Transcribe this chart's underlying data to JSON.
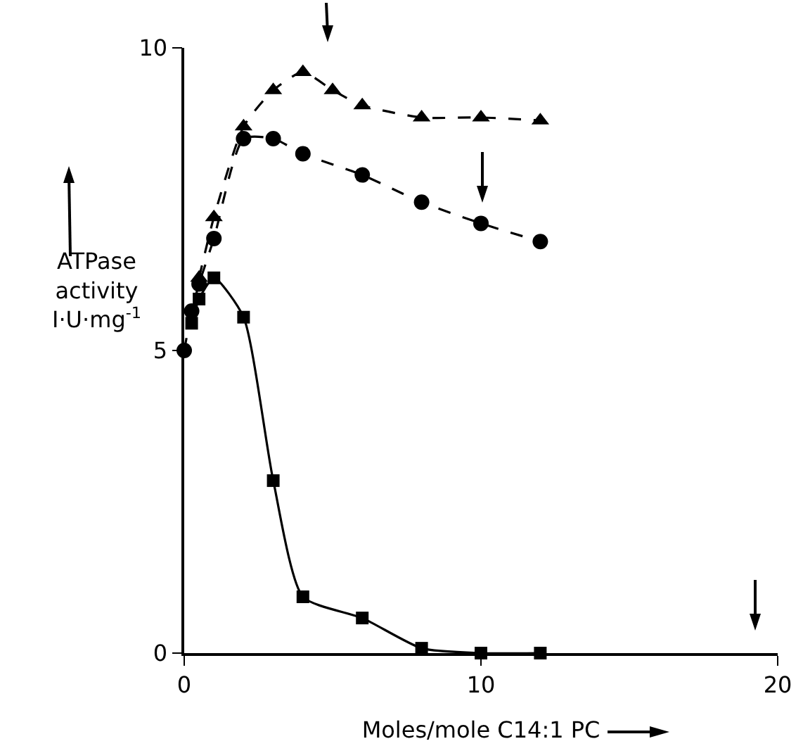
{
  "chart_data": {
    "type": "line",
    "xlabel": "Moles/mole C14:1 PC",
    "ylabel": "ATPase activity I·U·mg$^{-1}$",
    "xlim": [
      0,
      20
    ],
    "xticks": [
      0,
      10,
      20
    ],
    "ylim": [
      0,
      10
    ],
    "yticks": [
      0,
      5,
      10
    ],
    "grid": false,
    "series": [
      {
        "color": "#000000",
        "marker": "triangle",
        "line_style": "dashed",
        "x": [
          0.5,
          1,
          2,
          3,
          4,
          5,
          6,
          8,
          10,
          12
        ],
        "values": [
          6.2,
          7.2,
          8.7,
          9.3,
          9.6,
          9.3,
          9.05,
          8.85,
          8.85,
          8.8
        ]
      },
      {
        "color": "#000000",
        "marker": "circle",
        "line_style": "dashed",
        "x": [
          0,
          0.25,
          0.5,
          1,
          2,
          3,
          4,
          6,
          8,
          10,
          12
        ],
        "values": [
          5.0,
          5.65,
          6.1,
          6.85,
          8.5,
          8.5,
          8.25,
          7.9,
          7.45,
          7.1,
          6.8
        ]
      },
      {
        "color": "#000000",
        "marker": "square",
        "line_style": "solid",
        "x": [
          0.25,
          0.5,
          1,
          2,
          3,
          4,
          6,
          8,
          10,
          12
        ],
        "values": [
          5.45,
          5.85,
          6.2,
          5.55,
          2.85,
          0.93,
          0.58,
          0.08,
          0,
          0
        ]
      }
    ]
  }
}
